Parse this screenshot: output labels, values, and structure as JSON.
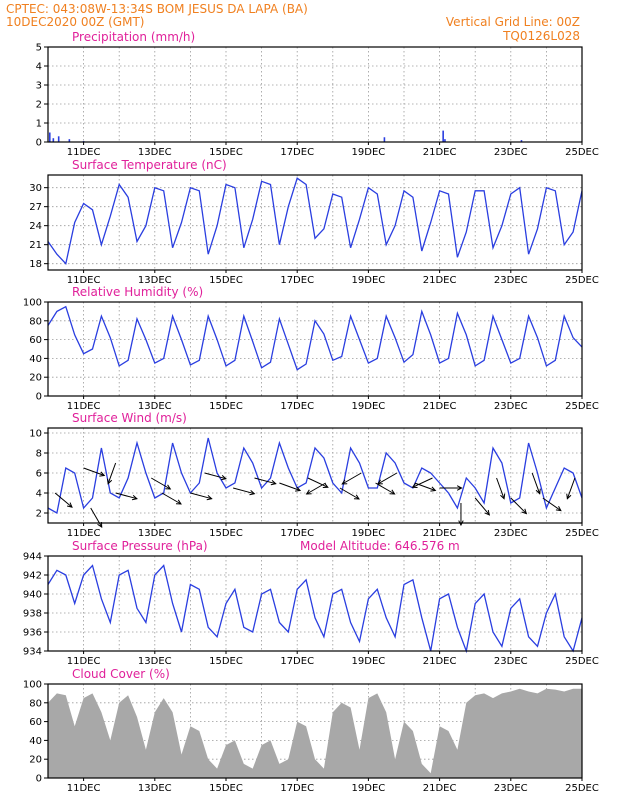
{
  "header": {
    "left_line1": "CPTEC:   043:08W-13:34S   BOM JESUS DA LAPA (BA)",
    "left_line2": "10DEC2020 00Z (GMT)",
    "right_line1": "Vertical Grid Line: 00Z",
    "right_line2": "TQ0126L028"
  },
  "colors": {
    "header": "#f08020",
    "title": "#e0209a",
    "line": "#2a3ee0",
    "bar": "#2a3ee0",
    "cloud": "#a8a8a8",
    "arrow": "#000000"
  },
  "x_axis": {
    "start": "10DEC2020 00Z",
    "end": "25DEC2020 00Z",
    "tick_labels": [
      "11DEC",
      "13DEC",
      "15DEC",
      "17DEC",
      "19DEC",
      "21DEC",
      "23DEC",
      "25DEC"
    ]
  },
  "chart_data": [
    {
      "id": "precip",
      "type": "bar",
      "title": "Precipitation (mm/h)",
      "ylim": [
        0,
        5
      ],
      "yticks": [
        0,
        1,
        2,
        3,
        4,
        5
      ],
      "x": [
        0.05,
        0.15,
        0.3,
        0.6,
        1.0,
        9.45,
        11.1,
        11.15,
        13.3
      ],
      "values": [
        0.5,
        0.2,
        0.3,
        0.15,
        0.05,
        0.25,
        0.6,
        0.15,
        0.1
      ]
    },
    {
      "id": "temp",
      "type": "line",
      "title": "Surface Temperature (nC)",
      "ylim": [
        17,
        32
      ],
      "yticks": [
        18,
        21,
        24,
        27,
        30
      ],
      "x": [
        0,
        0.25,
        0.5,
        0.75,
        1.0,
        1.25,
        1.5,
        1.75,
        2.0,
        2.25,
        2.5,
        2.75,
        3.0,
        3.25,
        3.5,
        3.75,
        4.0,
        4.25,
        4.5,
        4.75,
        5.0,
        5.25,
        5.5,
        5.75,
        6.0,
        6.25,
        6.5,
        6.75,
        7.0,
        7.25,
        7.5,
        7.75,
        8.0,
        8.25,
        8.5,
        8.75,
        9.0,
        9.25,
        9.5,
        9.75,
        10.0,
        10.25,
        10.5,
        10.75,
        11.0,
        11.25,
        11.5,
        11.75,
        12.0,
        12.25,
        12.5,
        12.75,
        13.0,
        13.25,
        13.5,
        13.75,
        14.0,
        14.25,
        14.5,
        14.75,
        15.0
      ],
      "values": [
        21.5,
        19.5,
        18.0,
        24.5,
        27.5,
        26.5,
        21.0,
        25.5,
        30.5,
        28.5,
        21.5,
        24.0,
        30.0,
        29.5,
        20.5,
        24.5,
        30.0,
        29.5,
        19.5,
        24.0,
        30.5,
        30.0,
        20.5,
        25.0,
        31.0,
        30.5,
        21.0,
        27.0,
        31.5,
        30.5,
        22.0,
        23.5,
        29.0,
        28.5,
        20.5,
        25.0,
        30.0,
        29.0,
        21.0,
        24.0,
        29.5,
        28.5,
        20.0,
        24.5,
        29.5,
        29.0,
        19.0,
        23.0,
        29.5,
        29.5,
        20.5,
        24.0,
        29.0,
        30.0,
        19.5,
        23.5,
        30.0,
        29.5,
        21.0,
        23.0,
        29.5
      ]
    },
    {
      "id": "rh",
      "type": "line",
      "title": "Relative Humidity (%)",
      "ylim": [
        0,
        100
      ],
      "yticks": [
        0,
        20,
        40,
        60,
        80,
        100
      ],
      "x": [
        0,
        0.25,
        0.5,
        0.75,
        1.0,
        1.25,
        1.5,
        1.75,
        2.0,
        2.25,
        2.5,
        2.75,
        3.0,
        3.25,
        3.5,
        3.75,
        4.0,
        4.25,
        4.5,
        4.75,
        5.0,
        5.25,
        5.5,
        5.75,
        6.0,
        6.25,
        6.5,
        6.75,
        7.0,
        7.25,
        7.5,
        7.75,
        8.0,
        8.25,
        8.5,
        8.75,
        9.0,
        9.25,
        9.5,
        9.75,
        10.0,
        10.25,
        10.5,
        10.75,
        11.0,
        11.25,
        11.5,
        11.75,
        12.0,
        12.25,
        12.5,
        12.75,
        13.0,
        13.25,
        13.5,
        13.75,
        14.0,
        14.25,
        14.5,
        14.75,
        15.0
      ],
      "values": [
        75,
        90,
        95,
        65,
        45,
        50,
        85,
        62,
        32,
        38,
        82,
        60,
        35,
        40,
        85,
        60,
        33,
        38,
        85,
        60,
        32,
        38,
        85,
        58,
        30,
        36,
        82,
        55,
        28,
        34,
        80,
        66,
        38,
        42,
        85,
        60,
        35,
        40,
        85,
        62,
        36,
        44,
        90,
        65,
        35,
        40,
        88,
        65,
        32,
        38,
        85,
        60,
        35,
        40,
        85,
        62,
        32,
        38,
        85,
        62,
        52
      ]
    },
    {
      "id": "wind",
      "type": "line",
      "title": "Surface Wind (m/s)",
      "ylim": [
        1,
        10.5
      ],
      "yticks": [
        2,
        4,
        6,
        8,
        10
      ],
      "x": [
        0,
        0.25,
        0.5,
        0.75,
        1.0,
        1.25,
        1.5,
        1.75,
        2.0,
        2.25,
        2.5,
        2.75,
        3.0,
        3.25,
        3.5,
        3.75,
        4.0,
        4.25,
        4.5,
        4.75,
        5.0,
        5.25,
        5.5,
        5.75,
        6.0,
        6.25,
        6.5,
        6.75,
        7.0,
        7.25,
        7.5,
        7.75,
        8.0,
        8.25,
        8.5,
        8.75,
        9.0,
        9.25,
        9.5,
        9.75,
        10.0,
        10.25,
        10.5,
        10.75,
        11.0,
        11.25,
        11.5,
        11.75,
        12.0,
        12.25,
        12.5,
        12.75,
        13.0,
        13.25,
        13.5,
        13.75,
        14.0,
        14.25,
        14.5,
        14.75,
        15.0
      ],
      "values": [
        2.5,
        2.0,
        6.5,
        6.0,
        2.5,
        3.5,
        8.5,
        4.0,
        3.5,
        5.5,
        9.0,
        6.0,
        3.5,
        4.0,
        9.0,
        6.0,
        4.0,
        5.0,
        9.5,
        6.0,
        4.5,
        5.0,
        8.5,
        7.0,
        4.5,
        5.5,
        9.0,
        6.5,
        4.5,
        5.0,
        8.5,
        7.5,
        5.0,
        4.0,
        8.5,
        7.0,
        4.5,
        4.5,
        8.0,
        7.0,
        5.0,
        4.5,
        6.5,
        6.0,
        5.0,
        4.0,
        2.5,
        5.5,
        4.5,
        3.0,
        8.5,
        7.0,
        3.0,
        3.5,
        9.0,
        6.0,
        2.5,
        4.5,
        6.5,
        6.0,
        3.5
      ],
      "vectors": [
        {
          "x": 0.2,
          "y": 4.0,
          "dir": 230
        },
        {
          "x": 1.0,
          "y": 6.5,
          "dir": 250
        },
        {
          "x": 1.2,
          "y": 2.5,
          "dir": 210
        },
        {
          "x": 1.9,
          "y": 7.0,
          "dir": 160
        },
        {
          "x": 1.9,
          "y": 4.0,
          "dir": 255
        },
        {
          "x": 2.9,
          "y": 5.5,
          "dir": 240
        },
        {
          "x": 3.2,
          "y": 4.0,
          "dir": 240
        },
        {
          "x": 4.0,
          "y": 4.0,
          "dir": 255
        },
        {
          "x": 4.4,
          "y": 6.0,
          "dir": 255
        },
        {
          "x": 5.2,
          "y": 4.5,
          "dir": 255
        },
        {
          "x": 5.8,
          "y": 5.5,
          "dir": 255
        },
        {
          "x": 6.5,
          "y": 5.0,
          "dir": 250
        },
        {
          "x": 7.3,
          "y": 5.5,
          "dir": 245
        },
        {
          "x": 7.8,
          "y": 5.0,
          "dir": 120
        },
        {
          "x": 8.2,
          "y": 4.5,
          "dir": 240
        },
        {
          "x": 8.8,
          "y": 6.0,
          "dir": 120
        },
        {
          "x": 9.2,
          "y": 5.0,
          "dir": 240
        },
        {
          "x": 9.8,
          "y": 6.0,
          "dir": 120
        },
        {
          "x": 10.3,
          "y": 5.0,
          "dir": 250
        },
        {
          "x": 10.8,
          "y": 5.5,
          "dir": 115
        },
        {
          "x": 11.0,
          "y": 4.5,
          "dir": 270
        },
        {
          "x": 11.6,
          "y": 3.0,
          "dir": 180
        },
        {
          "x": 12.0,
          "y": 3.5,
          "dir": 220
        },
        {
          "x": 12.6,
          "y": 5.5,
          "dir": 200
        },
        {
          "x": 13.0,
          "y": 3.5,
          "dir": 225
        },
        {
          "x": 13.6,
          "y": 6.0,
          "dir": 200
        },
        {
          "x": 13.9,
          "y": 3.5,
          "dir": 235
        },
        {
          "x": 14.8,
          "y": 5.5,
          "dir": 160
        }
      ]
    },
    {
      "id": "press",
      "type": "line",
      "title": "Surface Pressure (hPa)",
      "note": "Model Altitude: 646.576 m",
      "ylim": [
        934,
        944
      ],
      "yticks": [
        934,
        936,
        938,
        940,
        942,
        944
      ],
      "x": [
        0,
        0.25,
        0.5,
        0.75,
        1.0,
        1.25,
        1.5,
        1.75,
        2.0,
        2.25,
        2.5,
        2.75,
        3.0,
        3.25,
        3.5,
        3.75,
        4.0,
        4.25,
        4.5,
        4.75,
        5.0,
        5.25,
        5.5,
        5.75,
        6.0,
        6.25,
        6.5,
        6.75,
        7.0,
        7.25,
        7.5,
        7.75,
        8.0,
        8.25,
        8.5,
        8.75,
        9.0,
        9.25,
        9.5,
        9.75,
        10.0,
        10.25,
        10.5,
        10.75,
        11.0,
        11.25,
        11.5,
        11.75,
        12.0,
        12.25,
        12.5,
        12.75,
        13.0,
        13.25,
        13.5,
        13.75,
        14.0,
        14.25,
        14.5,
        14.75,
        15.0
      ],
      "values": [
        941.0,
        942.5,
        942.0,
        939.0,
        942.0,
        943.0,
        939.5,
        937.0,
        942.0,
        942.5,
        938.5,
        937.0,
        942.0,
        943.0,
        939.0,
        936.0,
        941.0,
        940.5,
        936.5,
        935.5,
        939.0,
        940.5,
        936.5,
        936.0,
        940.0,
        940.5,
        937.0,
        936.0,
        940.5,
        941.5,
        937.5,
        935.5,
        940.0,
        940.5,
        937.0,
        935.0,
        939.5,
        940.5,
        937.5,
        935.5,
        941.0,
        941.5,
        937.5,
        934.0,
        939.5,
        940.0,
        936.5,
        934.0,
        939.0,
        940.0,
        936.0,
        934.5,
        938.5,
        939.5,
        935.5,
        934.5,
        938.0,
        940.0,
        935.5,
        934.0,
        937.5
      ]
    },
    {
      "id": "cloud",
      "type": "bar",
      "title": "Cloud Cover (%)",
      "ylim": [
        0,
        100
      ],
      "yticks": [
        0,
        20,
        40,
        60,
        80,
        100
      ],
      "x": [
        0,
        0.25,
        0.5,
        0.75,
        1.0,
        1.25,
        1.5,
        1.75,
        2.0,
        2.25,
        2.5,
        2.75,
        3.0,
        3.25,
        3.5,
        3.75,
        4.0,
        4.25,
        4.5,
        4.75,
        5.0,
        5.25,
        5.5,
        5.75,
        6.0,
        6.25,
        6.5,
        6.75,
        7.0,
        7.25,
        7.5,
        7.75,
        8.0,
        8.25,
        8.5,
        8.75,
        9.0,
        9.25,
        9.5,
        9.75,
        10.0,
        10.25,
        10.5,
        10.75,
        11.0,
        11.25,
        11.5,
        11.75,
        12.0,
        12.25,
        12.5,
        12.75,
        13.0,
        13.25,
        13.5,
        13.75,
        14.0,
        14.25,
        14.5,
        14.75,
        15.0
      ],
      "values": [
        80,
        90,
        88,
        55,
        85,
        90,
        70,
        40,
        80,
        88,
        65,
        30,
        70,
        85,
        70,
        25,
        55,
        50,
        20,
        10,
        35,
        40,
        15,
        10,
        35,
        40,
        15,
        20,
        60,
        55,
        20,
        10,
        70,
        80,
        75,
        30,
        85,
        90,
        70,
        20,
        60,
        50,
        15,
        5,
        55,
        50,
        30,
        80,
        88,
        90,
        85,
        90,
        92,
        95,
        92,
        90,
        95,
        94,
        92,
        95,
        95
      ]
    }
  ]
}
